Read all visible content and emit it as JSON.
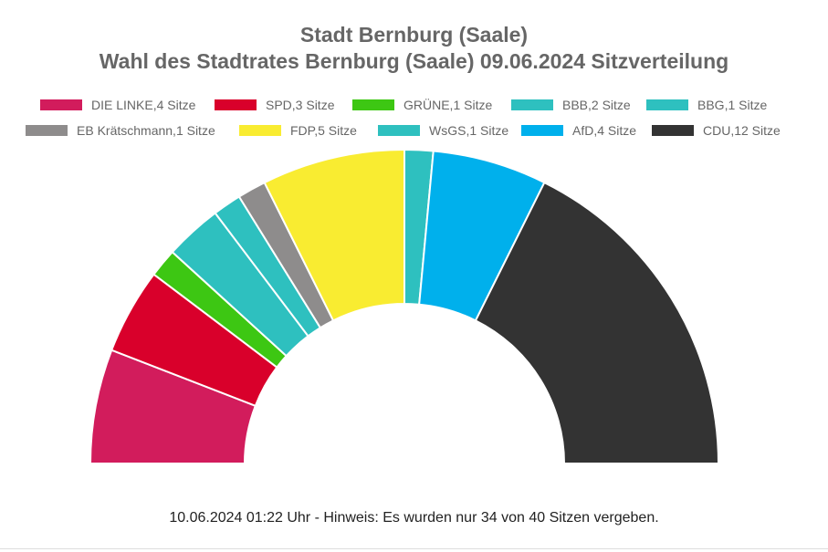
{
  "chart_data": {
    "type": "pie",
    "subtype": "half-donut parliament",
    "title": "Stadt Bernburg (Saale)",
    "subtitle": "Wahl des Stadtrates Bernburg (Saale) 09.06.2024 Sitzverteilung",
    "legend_position": "top",
    "series": [
      {
        "name": "DIE LINKE",
        "value": 4,
        "label": "DIE LINKE,4 Sitze",
        "color": "#d21c5c"
      },
      {
        "name": "SPD",
        "value": 3,
        "label": "SPD,3 Sitze",
        "color": "#d9002b"
      },
      {
        "name": "GRÜNE",
        "value": 1,
        "label": "GRÜNE,1 Sitze",
        "color": "#3dc713"
      },
      {
        "name": "BBB",
        "value": 2,
        "label": "BBB,2 Sitze",
        "color": "#2ec0bf"
      },
      {
        "name": "BBG",
        "value": 1,
        "label": "BBG,1 Sitze",
        "color": "#2ec0bf"
      },
      {
        "name": "EB Krätschmann",
        "value": 1,
        "label": "EB Krätschmann,1 Sitze",
        "color": "#8e8c8c"
      },
      {
        "name": "FDP",
        "value": 5,
        "label": "FDP,5 Sitze",
        "color": "#f9ec31"
      },
      {
        "name": "WsGS",
        "value": 1,
        "label": "WsGS,1 Sitze",
        "color": "#2ec0bf"
      },
      {
        "name": "AfD",
        "value": 4,
        "label": "AfD,4 Sitze",
        "color": "#00b0ec"
      },
      {
        "name": "CDU",
        "value": 12,
        "label": "CDU,12 Sitze",
        "color": "#333333"
      }
    ],
    "total_seats_assigned": 34
  },
  "footnote": "10.06.2024 01:22 Uhr - Hinweis: Es wurden nur 34 von 40 Sitzen vergeben."
}
